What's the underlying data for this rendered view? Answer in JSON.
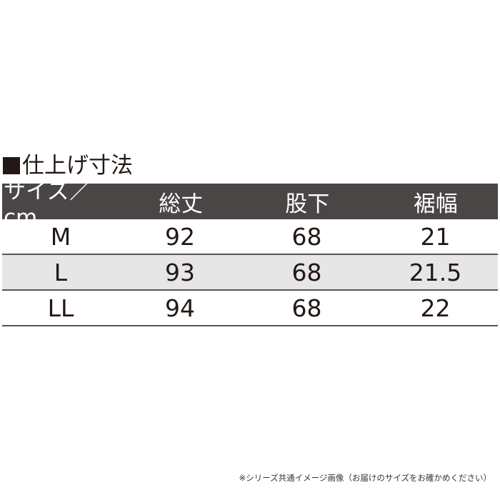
{
  "title": "仕上げ寸法",
  "table": {
    "headers": [
      "サイズ／cm",
      "総丈",
      "股下",
      "裾幅"
    ],
    "rows": [
      [
        "M",
        "92",
        "68",
        "21"
      ],
      [
        "L",
        "93",
        "68",
        "21.5"
      ],
      [
        "LL",
        "94",
        "68",
        "22"
      ]
    ]
  },
  "note": "※シリーズ共通イメージ画像（お届けのサイズをお確かめください）",
  "colors": {
    "header_bg": "#4b4646",
    "alt_row_bg": "#e7e6e6",
    "text": "#231815"
  }
}
